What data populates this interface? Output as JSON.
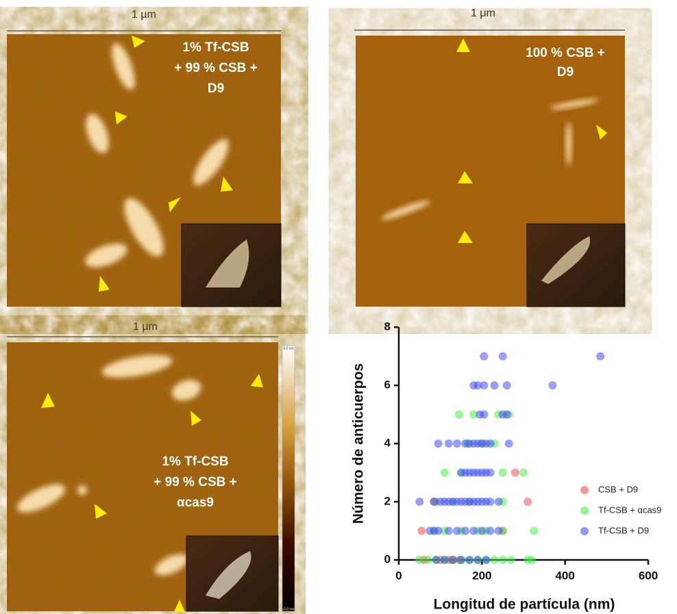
{
  "panels": [
    {
      "scale_label": "1 µm",
      "label_lines": [
        "1% Tf-CSB",
        "+ 99 % CSB +",
        "D9"
      ]
    },
    {
      "scale_label": "1 μm",
      "label_lines": [
        "100 % CSB +",
        "D9"
      ]
    },
    {
      "scale_label": "1 µm",
      "label_lines": [
        "1% Tf-CSB",
        "+ 99 % CSB +",
        "αcas9"
      ]
    }
  ],
  "colorbar": {
    "top_label": "5.0 nm",
    "bottom_label": "-5.0 nm"
  },
  "chart_data": {
    "type": "scatter",
    "x_label": "Longitud de partícula (nm)",
    "y_label": "Número de anticuerpos",
    "xlim": [
      0,
      600
    ],
    "xticks": [
      0,
      200,
      400,
      600
    ],
    "ylim": [
      0,
      8
    ],
    "yticks": [
      0,
      2,
      4,
      6,
      8
    ],
    "series": [
      {
        "name": "CSB + D9",
        "color": "#f0505a",
        "x": [
          280,
          85,
          310,
          55,
          250,
          60,
          100,
          120,
          130,
          145
        ],
        "values": [
          3,
          2,
          2,
          1,
          1,
          0,
          0,
          0,
          0,
          0
        ]
      },
      {
        "name": "Tf-CSB + αcas9",
        "color": "#44ee44",
        "x": [
          145,
          180,
          240,
          265,
          165,
          200,
          230,
          110,
          150,
          250,
          300,
          90,
          130,
          170,
          250,
          85,
          110,
          150,
          190,
          210,
          250,
          325,
          50,
          70,
          90,
          110,
          130,
          150,
          170,
          190,
          210,
          230,
          250,
          270,
          310,
          320
        ],
        "values": [
          5,
          5,
          5,
          5,
          4,
          4,
          4,
          3,
          3,
          3,
          3,
          2,
          2,
          2,
          2,
          1,
          1,
          1,
          1,
          1,
          1,
          1,
          0,
          0,
          0,
          0,
          0,
          0,
          0,
          0,
          0,
          0,
          0,
          0,
          0,
          0
        ]
      },
      {
        "name": "Tf-CSB + D9",
        "color": "#4450ee",
        "x": [
          205,
          250,
          485,
          180,
          190,
          205,
          230,
          260,
          370,
          195,
          205,
          250,
          260,
          95,
          120,
          140,
          160,
          170,
          180,
          190,
          200,
          210,
          220,
          265,
          150,
          160,
          170,
          180,
          190,
          200,
          210,
          220,
          50,
          85,
          100,
          110,
          120,
          130,
          140,
          150,
          160,
          170,
          180,
          190,
          200,
          210,
          220,
          240,
          75,
          85,
          95,
          120,
          140,
          160,
          180,
          200,
          220,
          240,
          90,
          110,
          130,
          150,
          170,
          190,
          210
        ],
        "values": [
          7,
          7,
          7,
          6,
          6,
          6,
          6,
          6,
          6,
          5,
          5,
          5,
          5,
          4,
          4,
          4,
          4,
          4,
          4,
          4,
          4,
          4,
          4,
          4,
          3,
          3,
          3,
          3,
          3,
          3,
          3,
          3,
          2,
          2,
          2,
          2,
          2,
          2,
          2,
          2,
          2,
          2,
          2,
          2,
          2,
          2,
          2,
          2,
          1,
          1,
          1,
          1,
          1,
          1,
          1,
          1,
          1,
          1,
          0,
          0,
          0,
          0,
          0,
          0,
          0
        ]
      }
    ]
  }
}
